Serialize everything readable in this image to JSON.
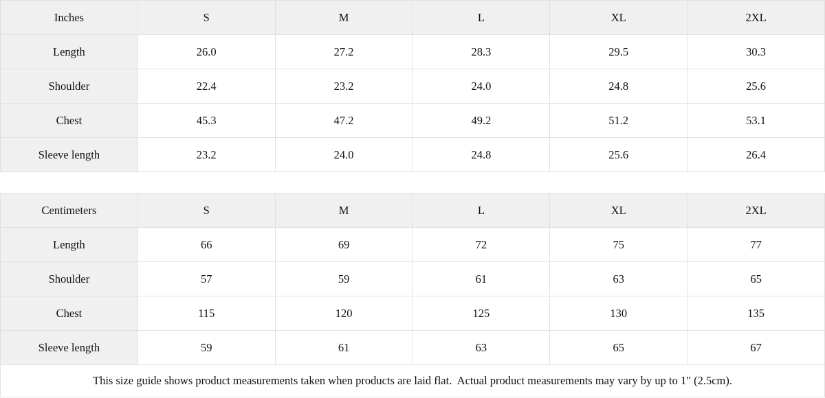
{
  "colors": {
    "header_bg": "#f0f0f0",
    "border": "#e1e1e1",
    "text": "#111111",
    "cell_bg": "#ffffff"
  },
  "size_guide": {
    "tables": [
      {
        "unit_label": "Inches",
        "sizes": [
          "S",
          "M",
          "L",
          "XL",
          "2XL"
        ],
        "rows": [
          {
            "label": "Length",
            "values": [
              "26.0",
              "27.2",
              "28.3",
              "29.5",
              "30.3"
            ]
          },
          {
            "label": "Shoulder",
            "values": [
              "22.4",
              "23.2",
              "24.0",
              "24.8",
              "25.6"
            ]
          },
          {
            "label": "Chest",
            "values": [
              "45.3",
              "47.2",
              "49.2",
              "51.2",
              "53.1"
            ]
          },
          {
            "label": "Sleeve length",
            "values": [
              "23.2",
              "24.0",
              "24.8",
              "25.6",
              "26.4"
            ]
          }
        ]
      },
      {
        "unit_label": "Centimeters",
        "sizes": [
          "S",
          "M",
          "L",
          "XL",
          "2XL"
        ],
        "rows": [
          {
            "label": "Length",
            "values": [
              "66",
              "69",
              "72",
              "75",
              "77"
            ]
          },
          {
            "label": "Shoulder",
            "values": [
              "57",
              "59",
              "61",
              "63",
              "65"
            ]
          },
          {
            "label": "Chest",
            "values": [
              "115",
              "120",
              "125",
              "130",
              "135"
            ]
          },
          {
            "label": "Sleeve length",
            "values": [
              "59",
              "61",
              "63",
              "65",
              "67"
            ]
          }
        ]
      }
    ],
    "footnote": "This size guide shows product measurements taken when products are laid flat.  Actual product measurements may vary by up to 1\" (2.5cm)."
  },
  "chart_data": [
    {
      "type": "table",
      "title": "Inches",
      "columns": [
        "Inches",
        "S",
        "M",
        "L",
        "XL",
        "2XL"
      ],
      "rows": [
        [
          "Length",
          26.0,
          27.2,
          28.3,
          29.5,
          30.3
        ],
        [
          "Shoulder",
          22.4,
          23.2,
          24.0,
          24.8,
          25.6
        ],
        [
          "Chest",
          45.3,
          47.2,
          49.2,
          51.2,
          53.1
        ],
        [
          "Sleeve length",
          23.2,
          24.0,
          24.8,
          25.6,
          26.4
        ]
      ]
    },
    {
      "type": "table",
      "title": "Centimeters",
      "columns": [
        "Centimeters",
        "S",
        "M",
        "L",
        "XL",
        "2XL"
      ],
      "rows": [
        [
          "Length",
          66,
          69,
          72,
          75,
          77
        ],
        [
          "Shoulder",
          57,
          59,
          61,
          63,
          65
        ],
        [
          "Chest",
          115,
          120,
          125,
          130,
          135
        ],
        [
          "Sleeve length",
          59,
          61,
          63,
          65,
          67
        ]
      ]
    }
  ]
}
